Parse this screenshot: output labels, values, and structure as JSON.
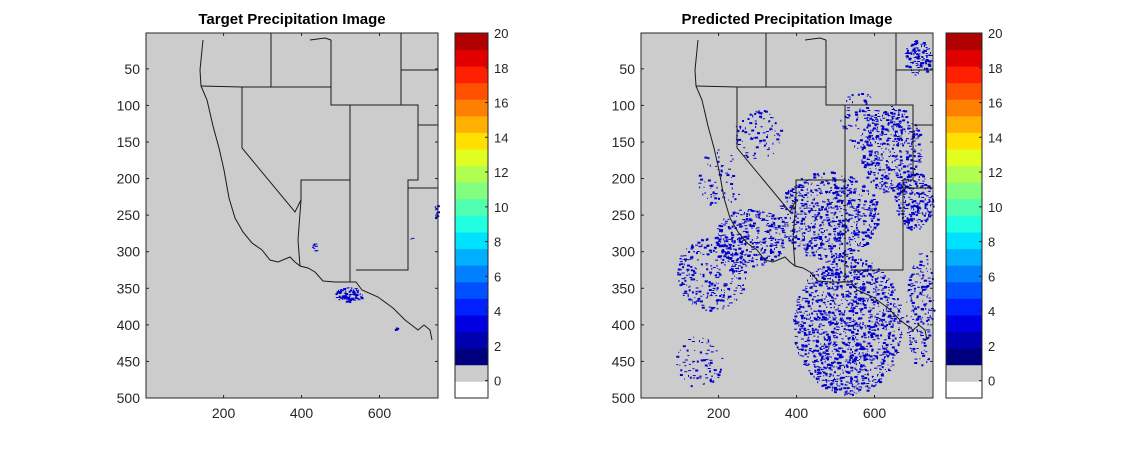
{
  "colors": {
    "land": "#cccccc",
    "precip": "#0000cd",
    "frame": "#262626"
  },
  "chart_data": [
    {
      "type": "heatmap",
      "title": "Target Precipitation Image",
      "xlim": [
        1,
        750
      ],
      "ylim": [
        1,
        500
      ],
      "y_reversed": true,
      "xticks": [
        "200",
        "400",
        "600"
      ],
      "xtick_values": [
        200,
        400,
        600
      ],
      "yticks": [
        "50",
        "100",
        "150",
        "200",
        "250",
        "300",
        "350",
        "400",
        "450",
        "500"
      ],
      "ytick_values": [
        50,
        100,
        150,
        200,
        250,
        300,
        350,
        400,
        450,
        500
      ],
      "background_value": 0,
      "precip_clusters": [
        {
          "x": 520,
          "y": 358,
          "rx": 35,
          "ry": 10,
          "n": 90
        },
        {
          "x": 432,
          "y": 293,
          "rx": 6,
          "ry": 6,
          "n": 10
        },
        {
          "x": 744,
          "y": 245,
          "rx": 6,
          "ry": 10,
          "n": 14
        },
        {
          "x": 680,
          "y": 282,
          "rx": 2,
          "ry": 2,
          "n": 2
        },
        {
          "x": 640,
          "y": 405,
          "rx": 3,
          "ry": 3,
          "n": 3
        }
      ],
      "colorbar": {
        "ticks": [
          "0",
          "2",
          "4",
          "6",
          "8",
          "10",
          "12",
          "14",
          "16",
          "18",
          "20"
        ],
        "tick_values": [
          0,
          2,
          4,
          6,
          8,
          10,
          12,
          14,
          16,
          18,
          20
        ],
        "range": [
          -1,
          20
        ],
        "colors": [
          "#ffffff",
          "#cccccc",
          "#00007f",
          "#0000b0",
          "#0000e0",
          "#0020ff",
          "#0050ff",
          "#0080ff",
          "#00b0ff",
          "#00e0ff",
          "#20ffdf",
          "#50ffaf",
          "#80ff80",
          "#b0ff50",
          "#e0ff20",
          "#ffe000",
          "#ffb000",
          "#ff8000",
          "#ff5000",
          "#ff2000",
          "#e00000",
          "#b00000"
        ]
      }
    },
    {
      "type": "heatmap",
      "title": "Predicted Precipitation Image",
      "xlim": [
        1,
        750
      ],
      "ylim": [
        1,
        500
      ],
      "y_reversed": true,
      "xticks": [
        "200",
        "400",
        "600"
      ],
      "xtick_values": [
        200,
        400,
        600
      ],
      "yticks": [
        "50",
        "100",
        "150",
        "200",
        "250",
        "300",
        "350",
        "400",
        "450",
        "500"
      ],
      "ytick_values": [
        50,
        100,
        150,
        200,
        250,
        300,
        350,
        400,
        450,
        500
      ],
      "background_value": 0,
      "precip_clusters": [
        {
          "x": 530,
          "y": 400,
          "rx": 140,
          "ry": 95,
          "n": 1400
        },
        {
          "x": 480,
          "y": 250,
          "rx": 130,
          "ry": 60,
          "n": 700
        },
        {
          "x": 640,
          "y": 160,
          "rx": 80,
          "ry": 60,
          "n": 450
        },
        {
          "x": 700,
          "y": 230,
          "rx": 50,
          "ry": 40,
          "n": 250
        },
        {
          "x": 280,
          "y": 280,
          "rx": 90,
          "ry": 40,
          "n": 350
        },
        {
          "x": 180,
          "y": 330,
          "rx": 90,
          "ry": 50,
          "n": 300
        },
        {
          "x": 710,
          "y": 35,
          "rx": 35,
          "ry": 25,
          "n": 120
        },
        {
          "x": 720,
          "y": 380,
          "rx": 40,
          "ry": 80,
          "n": 200
        },
        {
          "x": 300,
          "y": 140,
          "rx": 60,
          "ry": 35,
          "n": 90
        },
        {
          "x": 200,
          "y": 200,
          "rx": 60,
          "ry": 40,
          "n": 70
        },
        {
          "x": 560,
          "y": 120,
          "rx": 50,
          "ry": 40,
          "n": 90
        },
        {
          "x": 150,
          "y": 450,
          "rx": 60,
          "ry": 35,
          "n": 80
        }
      ],
      "colorbar": {
        "ticks": [
          "0",
          "2",
          "4",
          "6",
          "8",
          "10",
          "12",
          "14",
          "16",
          "18",
          "20"
        ],
        "tick_values": [
          0,
          2,
          4,
          6,
          8,
          10,
          12,
          14,
          16,
          18,
          20
        ],
        "range": [
          -1,
          20
        ],
        "colors": [
          "#ffffff",
          "#cccccc",
          "#00007f",
          "#0000b0",
          "#0000e0",
          "#0020ff",
          "#0050ff",
          "#0080ff",
          "#00b0ff",
          "#00e0ff",
          "#20ffdf",
          "#50ffaf",
          "#80ff80",
          "#b0ff50",
          "#e0ff20",
          "#ffe000",
          "#ffb000",
          "#ff8000",
          "#ff5000",
          "#ff2000",
          "#e00000",
          "#b00000"
        ]
      }
    }
  ]
}
